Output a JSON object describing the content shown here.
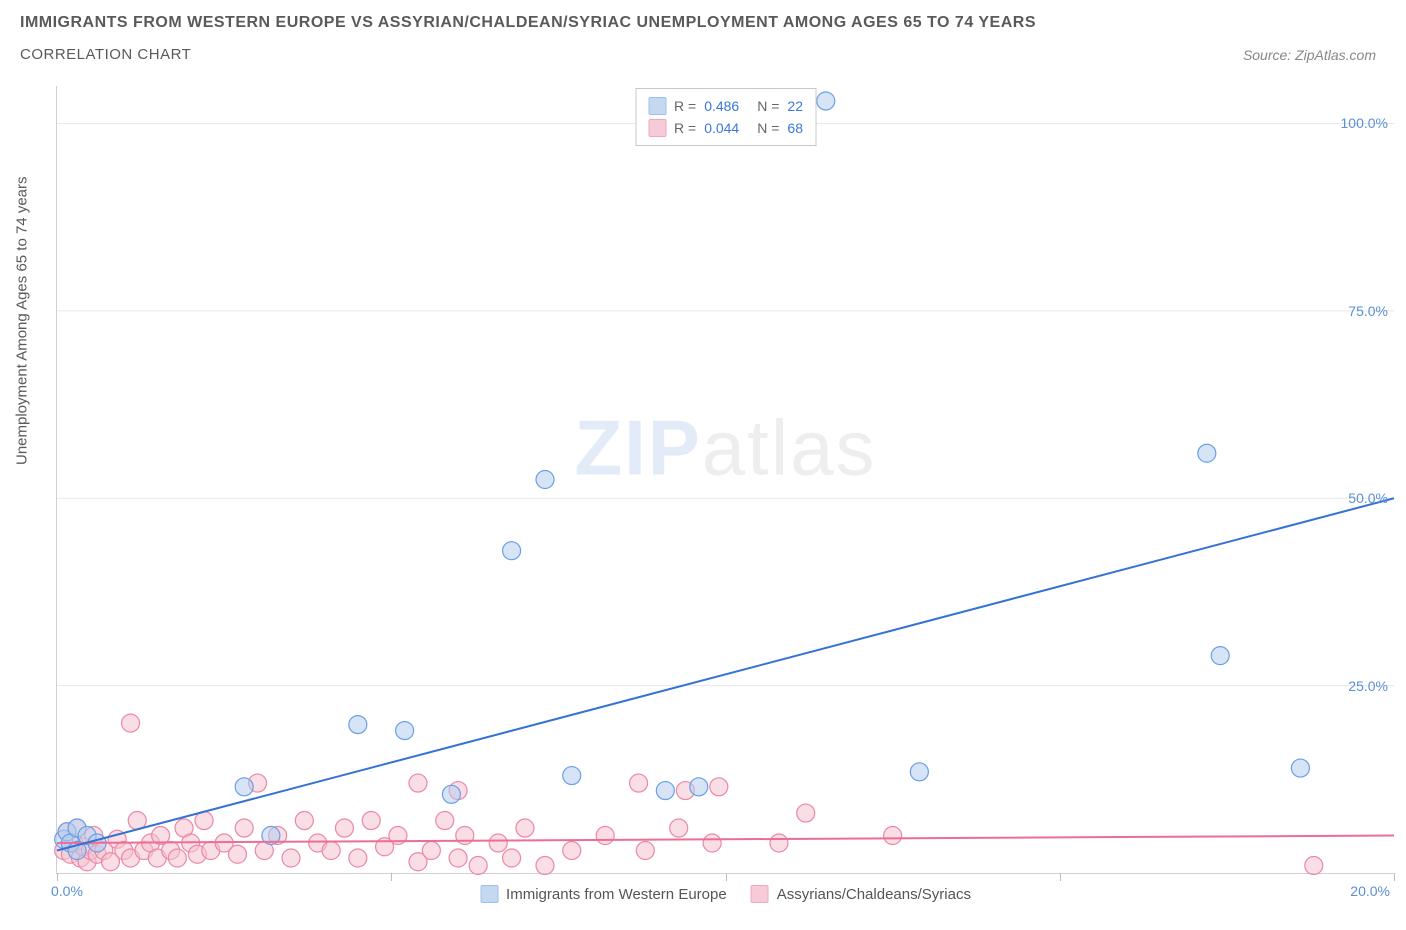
{
  "header": {
    "title": "IMMIGRANTS FROM WESTERN EUROPE VS ASSYRIAN/CHALDEAN/SYRIAC UNEMPLOYMENT AMONG AGES 65 TO 74 YEARS",
    "subtitle": "CORRELATION CHART",
    "source": "Source: ZipAtlas.com"
  },
  "chart": {
    "type": "scatter",
    "y_axis_title": "Unemployment Among Ages 65 to 74 years",
    "xlim": [
      0,
      20
    ],
    "ylim": [
      0,
      105
    ],
    "x_ticks": [
      0,
      5,
      10,
      15,
      20
    ],
    "y_right_labels": [
      {
        "value": 25,
        "text": "25.0%"
      },
      {
        "value": 50,
        "text": "50.0%"
      },
      {
        "value": 75,
        "text": "75.0%"
      },
      {
        "value": 100,
        "text": "100.0%"
      }
    ],
    "x_left_label": "0.0%",
    "x_right_label": "20.0%",
    "grid_y": [
      25,
      50,
      75,
      100
    ],
    "grid_color": "#e8e8e8",
    "background_color": "#ffffff",
    "tick_label_color": "#5a8fd6",
    "axis_title_color": "#5a5a5a",
    "watermark": {
      "zip": "ZIP",
      "atlas": "atlas"
    },
    "series": [
      {
        "name": "Immigrants from Western Europe",
        "legend_label": "Immigrants from Western Europe",
        "color_fill": "#b4cdee",
        "color_stroke": "#6a9fe6",
        "marker_radius": 9,
        "fill_opacity": 0.55,
        "line_color": "#3572d4",
        "line_width": 2,
        "trend": {
          "x1": 0,
          "y1": 3,
          "x2": 20,
          "y2": 50
        },
        "stats": {
          "R": "0.486",
          "N": "22"
        },
        "points": [
          {
            "x": 0.1,
            "y": 4.5
          },
          {
            "x": 0.15,
            "y": 5.5
          },
          {
            "x": 0.2,
            "y": 4
          },
          {
            "x": 0.3,
            "y": 3
          },
          {
            "x": 0.3,
            "y": 6
          },
          {
            "x": 0.45,
            "y": 5
          },
          {
            "x": 0.6,
            "y": 4
          },
          {
            "x": 2.8,
            "y": 11.5
          },
          {
            "x": 4.5,
            "y": 19.8
          },
          {
            "x": 5.2,
            "y": 19
          },
          {
            "x": 3.2,
            "y": 5
          },
          {
            "x": 5.9,
            "y": 10.5
          },
          {
            "x": 6.8,
            "y": 43
          },
          {
            "x": 7.3,
            "y": 52.5
          },
          {
            "x": 7.7,
            "y": 13
          },
          {
            "x": 9.1,
            "y": 11
          },
          {
            "x": 9.6,
            "y": 11.5
          },
          {
            "x": 11.5,
            "y": 103
          },
          {
            "x": 12.9,
            "y": 13.5
          },
          {
            "x": 17.2,
            "y": 56
          },
          {
            "x": 17.4,
            "y": 29
          },
          {
            "x": 18.6,
            "y": 14
          }
        ]
      },
      {
        "name": "Assyrians/Chaldeans/Syriacs",
        "legend_label": "Assyrians/Chaldeans/Syriacs",
        "color_fill": "#f4c2d0",
        "color_stroke": "#ec87a5",
        "marker_radius": 9,
        "fill_opacity": 0.55,
        "line_color": "#ec6e95",
        "line_width": 2,
        "trend": {
          "x1": 0,
          "y1": 4,
          "x2": 20,
          "y2": 5
        },
        "stats": {
          "R": "0.044",
          "N": "68"
        },
        "points": [
          {
            "x": 0.1,
            "y": 3
          },
          {
            "x": 0.15,
            "y": 5.5
          },
          {
            "x": 0.2,
            "y": 2.5
          },
          {
            "x": 0.25,
            "y": 4
          },
          {
            "x": 0.3,
            "y": 6
          },
          {
            "x": 0.35,
            "y": 2
          },
          {
            "x": 0.4,
            "y": 3.5
          },
          {
            "x": 0.45,
            "y": 1.5
          },
          {
            "x": 0.5,
            "y": 3
          },
          {
            "x": 0.55,
            "y": 5
          },
          {
            "x": 0.6,
            "y": 2.5
          },
          {
            "x": 0.7,
            "y": 3
          },
          {
            "x": 0.8,
            "y": 1.5
          },
          {
            "x": 0.9,
            "y": 4.5
          },
          {
            "x": 1.0,
            "y": 3
          },
          {
            "x": 1.1,
            "y": 20
          },
          {
            "x": 1.1,
            "y": 2
          },
          {
            "x": 1.2,
            "y": 7
          },
          {
            "x": 1.3,
            "y": 3
          },
          {
            "x": 1.4,
            "y": 4
          },
          {
            "x": 1.5,
            "y": 2
          },
          {
            "x": 1.55,
            "y": 5
          },
          {
            "x": 1.7,
            "y": 3
          },
          {
            "x": 1.8,
            "y": 2
          },
          {
            "x": 1.9,
            "y": 6
          },
          {
            "x": 2.0,
            "y": 4
          },
          {
            "x": 2.1,
            "y": 2.5
          },
          {
            "x": 2.2,
            "y": 7
          },
          {
            "x": 2.3,
            "y": 3
          },
          {
            "x": 2.5,
            "y": 4
          },
          {
            "x": 2.7,
            "y": 2.5
          },
          {
            "x": 2.8,
            "y": 6
          },
          {
            "x": 3.0,
            "y": 12
          },
          {
            "x": 3.1,
            "y": 3
          },
          {
            "x": 3.3,
            "y": 5
          },
          {
            "x": 3.5,
            "y": 2
          },
          {
            "x": 3.7,
            "y": 7
          },
          {
            "x": 3.9,
            "y": 4
          },
          {
            "x": 4.1,
            "y": 3
          },
          {
            "x": 4.3,
            "y": 6
          },
          {
            "x": 4.5,
            "y": 2
          },
          {
            "x": 4.7,
            "y": 7
          },
          {
            "x": 4.9,
            "y": 3.5
          },
          {
            "x": 5.1,
            "y": 5
          },
          {
            "x": 5.4,
            "y": 1.5
          },
          {
            "x": 5.4,
            "y": 12
          },
          {
            "x": 5.6,
            "y": 3
          },
          {
            "x": 5.8,
            "y": 7
          },
          {
            "x": 6.0,
            "y": 2
          },
          {
            "x": 6.0,
            "y": 11
          },
          {
            "x": 6.1,
            "y": 5
          },
          {
            "x": 6.3,
            "y": 1
          },
          {
            "x": 6.6,
            "y": 4
          },
          {
            "x": 6.8,
            "y": 2
          },
          {
            "x": 7.0,
            "y": 6
          },
          {
            "x": 7.3,
            "y": 1
          },
          {
            "x": 7.7,
            "y": 3
          },
          {
            "x": 8.2,
            "y": 5
          },
          {
            "x": 8.7,
            "y": 12
          },
          {
            "x": 8.8,
            "y": 3
          },
          {
            "x": 9.3,
            "y": 6
          },
          {
            "x": 9.4,
            "y": 11
          },
          {
            "x": 9.8,
            "y": 4
          },
          {
            "x": 9.9,
            "y": 11.5
          },
          {
            "x": 10.8,
            "y": 4
          },
          {
            "x": 11.2,
            "y": 8
          },
          {
            "x": 12.5,
            "y": 5
          },
          {
            "x": 18.8,
            "y": 1
          }
        ]
      }
    ],
    "legend_top_swatch_blue": {
      "fill": "#c4d8f2",
      "stroke": "#9fbfe8"
    },
    "legend_top_swatch_pink": {
      "fill": "#f6cad6",
      "stroke": "#eea8bd"
    }
  }
}
